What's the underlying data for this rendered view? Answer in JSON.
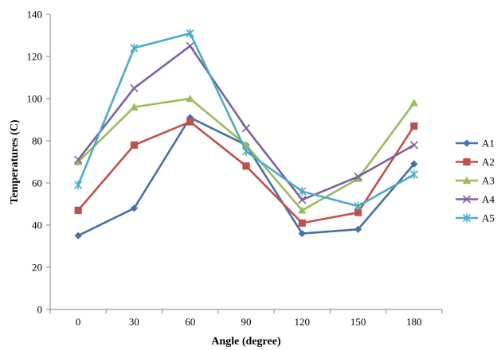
{
  "chart_data": {
    "type": "line",
    "title": "",
    "xlabel": "Angle (degree)",
    "ylabel": "Temperatures (C)",
    "categories": [
      "0",
      "30",
      "60",
      "90",
      "120",
      "150",
      "180"
    ],
    "ylim": [
      0,
      140
    ],
    "yticks": [
      0,
      20,
      40,
      60,
      80,
      100,
      120,
      140
    ],
    "grid": false,
    "legend_position": "right",
    "series": [
      {
        "name": "A1",
        "color": "#4572A7",
        "marker": "diamond",
        "values": [
          35,
          48,
          91,
          78,
          36,
          38,
          69
        ]
      },
      {
        "name": "A2",
        "color": "#C0504D",
        "marker": "square",
        "values": [
          47,
          78,
          89,
          68,
          41,
          46,
          87
        ]
      },
      {
        "name": "A3",
        "color": "#9BBB59",
        "marker": "triangle",
        "values": [
          70,
          96,
          100,
          78,
          47,
          62,
          98
        ]
      },
      {
        "name": "A4",
        "color": "#7D60A0",
        "marker": "x",
        "values": [
          71,
          105,
          125,
          86,
          52,
          63,
          78
        ]
      },
      {
        "name": "A5",
        "color": "#4BACC6",
        "marker": "star",
        "values": [
          59,
          124,
          131,
          75,
          56,
          49,
          64
        ]
      }
    ]
  }
}
